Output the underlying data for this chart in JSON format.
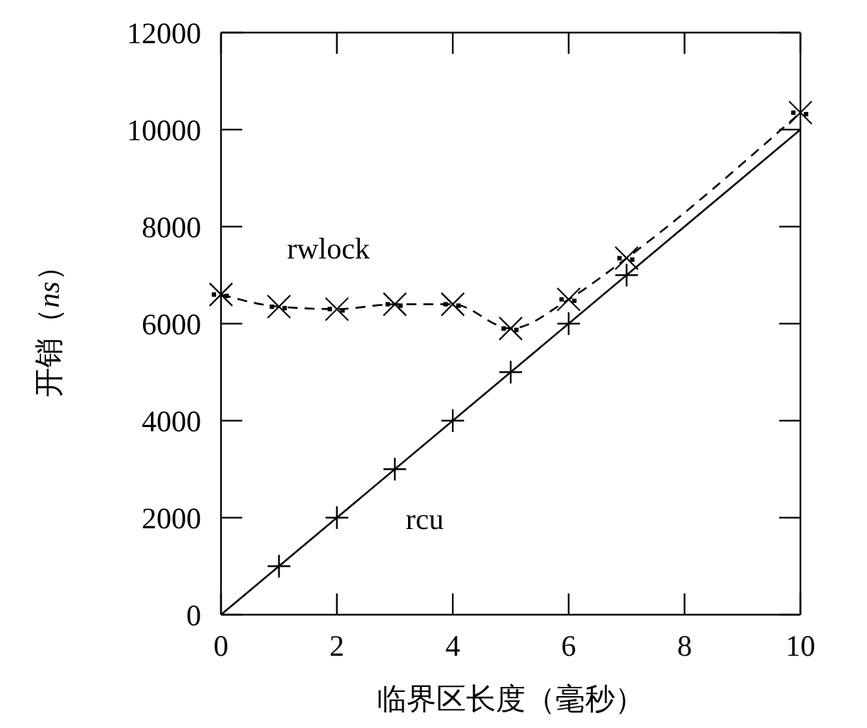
{
  "chart_data": {
    "type": "line",
    "xlabel": "临界区长度（毫秒）",
    "ylabel": "开销（ns）",
    "xlim": [
      0,
      10
    ],
    "xticks": [
      0,
      2,
      4,
      6,
      8,
      10
    ],
    "ylim": [
      0,
      12000
    ],
    "yticks": [
      0,
      2000,
      4000,
      6000,
      8000,
      10000,
      12000
    ],
    "series": [
      {
        "x": [
          0,
          10
        ],
        "values": [
          0,
          10000
        ],
        "color": "#000000",
        "line_style": "solid",
        "marker": "none"
      },
      {
        "name": "rcu",
        "type": "scatter",
        "x": [
          1,
          2,
          3,
          4,
          5,
          6,
          7
        ],
        "values": [
          1000,
          2000,
          3000,
          4000,
          5000,
          6000,
          7000
        ],
        "color": "#000000",
        "marker": "cross"
      },
      {
        "name": "rwlock",
        "x": [
          0,
          1,
          2,
          3,
          4,
          5,
          6,
          7,
          10
        ],
        "values": [
          6600,
          6350,
          6300,
          6400,
          6400,
          5900,
          6500,
          7350,
          10350
        ],
        "color": "#000000",
        "line_style": "dashed",
        "marker": "x"
      }
    ]
  }
}
